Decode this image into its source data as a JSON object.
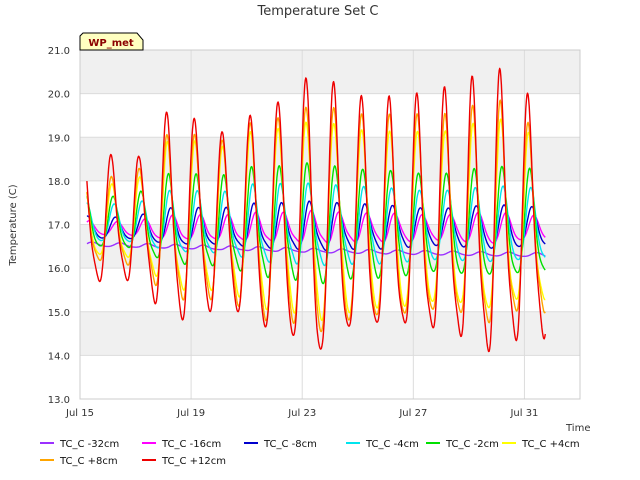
{
  "chart_data": {
    "type": "line",
    "title": "Temperature Set C",
    "xlabel": "Time",
    "ylabel": "Temperature (C)",
    "badge": "WP_met",
    "ylim": [
      13.0,
      21.0
    ],
    "y_ticks": [
      "13.0",
      "14.0",
      "15.0",
      "16.0",
      "17.0",
      "18.0",
      "19.0",
      "20.0",
      "21.0"
    ],
    "xlim": [
      "2024-07-15",
      "2024-08-02"
    ],
    "x_ticks": [
      {
        "date": "2024-07-15",
        "label": "Jul 15"
      },
      {
        "date": "2024-07-19",
        "label": "Jul 19"
      },
      {
        "date": "2024-07-23",
        "label": "Jul 23"
      },
      {
        "date": "2024-07-27",
        "label": "Jul 27"
      },
      {
        "date": "2024-07-31",
        "label": "Jul 31"
      }
    ],
    "grid": true,
    "legend_position": "bottom",
    "series": [
      {
        "name": "TC_C -32cm",
        "color": "#9b30ff",
        "baseline": [
          16.55,
          16.4,
          16.3
        ],
        "amplitudes": [
          0.05,
          0.05,
          0.05,
          0.05,
          0.05,
          0.05,
          0.05,
          0.05,
          0.05,
          0.05,
          0.05,
          0.05,
          0.05,
          0.05,
          0.05,
          0.05,
          0.05
        ],
        "phase": 0.45
      },
      {
        "name": "TC_C -16cm",
        "color": "#ff00ff",
        "baseline": [
          16.9,
          16.9,
          16.9
        ],
        "amplitudes": [
          0.2,
          0.15,
          0.2,
          0.3,
          0.3,
          0.3,
          0.35,
          0.35,
          0.4,
          0.35,
          0.35,
          0.35,
          0.3,
          0.35,
          0.4,
          0.3,
          0.3
        ],
        "phase": 0.35
      },
      {
        "name": "TC_C -8cm",
        "color": "#0000cd",
        "baseline": [
          16.9,
          16.9,
          16.9
        ],
        "amplitudes": [
          0.3,
          0.25,
          0.3,
          0.45,
          0.45,
          0.45,
          0.55,
          0.55,
          0.6,
          0.55,
          0.55,
          0.5,
          0.45,
          0.5,
          0.55,
          0.5,
          0.45
        ],
        "phase": 0.28
      },
      {
        "name": "TC_C -4cm",
        "color": "#00e5ee",
        "baseline": [
          17.0,
          16.9,
          16.9
        ],
        "amplitudes": [
          0.5,
          0.45,
          0.5,
          0.75,
          0.75,
          0.75,
          0.95,
          0.95,
          1.0,
          0.95,
          0.95,
          0.9,
          0.85,
          0.9,
          0.95,
          0.9,
          0.85
        ],
        "phase": 0.24
      },
      {
        "name": "TC_C -2cm",
        "color": "#00e000",
        "baseline": [
          17.0,
          16.9,
          16.9
        ],
        "amplitudes": [
          0.7,
          0.6,
          0.7,
          1.1,
          1.1,
          1.1,
          1.35,
          1.35,
          1.5,
          1.35,
          1.35,
          1.3,
          1.2,
          1.3,
          1.35,
          1.3,
          1.2
        ],
        "phase": 0.2
      },
      {
        "name": "TC_C +4cm",
        "color": "#ffff00",
        "baseline": [
          17.0,
          16.9,
          16.9
        ],
        "amplitudes": [
          0.95,
          0.85,
          1.0,
          1.8,
          1.8,
          1.7,
          2.2,
          2.2,
          2.5,
          2.3,
          2.2,
          2.2,
          2.1,
          2.2,
          2.4,
          2.0,
          2.1
        ],
        "phase": 0.16
      },
      {
        "name": "TC_C +8cm",
        "color": "#ffa500",
        "baseline": [
          17.0,
          16.9,
          16.9
        ],
        "amplitudes": [
          1.1,
          1.0,
          1.2,
          2.0,
          2.0,
          1.9,
          2.5,
          2.5,
          2.9,
          2.6,
          2.5,
          2.5,
          2.4,
          2.5,
          2.8,
          2.2,
          2.4
        ],
        "phase": 0.15
      },
      {
        "name": "TC_C +12cm",
        "color": "#ee0000",
        "baseline": [
          17.0,
          16.9,
          16.9
        ],
        "amplitudes": [
          1.7,
          1.5,
          1.5,
          2.6,
          2.4,
          2.1,
          2.7,
          2.9,
          3.6,
          2.9,
          2.8,
          2.8,
          2.9,
          3.1,
          3.5,
          2.9,
          3.0
        ],
        "phase": 0.14
      }
    ]
  }
}
